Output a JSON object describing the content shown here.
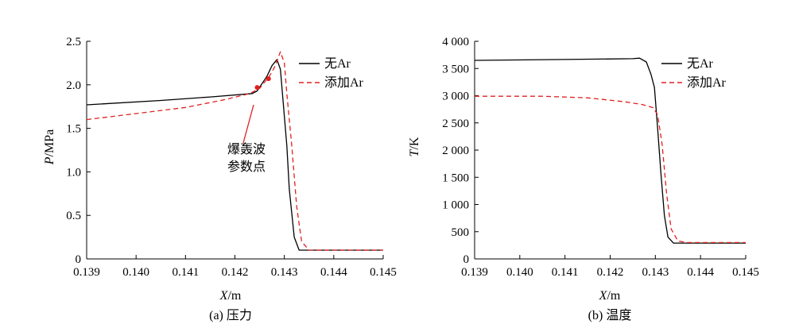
{
  "chart_data": [
    {
      "type": "line",
      "caption": "(a) 压力",
      "xlabel_var": "X",
      "xlabel_unit": "/m",
      "ylabel_var": "P",
      "ylabel_unit": "/MPa",
      "xlim": [
        0.139,
        0.145
      ],
      "ylim": [
        0,
        2.5
      ],
      "xticks": [
        0.139,
        0.14,
        0.141,
        0.142,
        0.143,
        0.144,
        0.145
      ],
      "xtick_labels": [
        "0.139",
        "0.140",
        "0.141",
        "0.142",
        "0.143",
        "0.144",
        "0.145"
      ],
      "yticks": [
        0,
        0.5,
        1.0,
        1.5,
        2.0,
        2.5
      ],
      "ytick_labels": [
        "0",
        "0.5",
        "1.0",
        "1.5",
        "2.0",
        "2.5"
      ],
      "legend_position": "top-right",
      "series": [
        {
          "name": "无Ar",
          "color": "#000000",
          "dash": "solid",
          "points": [
            [
              0.139,
              1.77
            ],
            [
              0.1405,
              1.82
            ],
            [
              0.1415,
              1.86
            ],
            [
              0.14235,
              1.9
            ],
            [
              0.14245,
              1.93
            ],
            [
              0.14265,
              2.1
            ],
            [
              0.14275,
              2.22
            ],
            [
              0.14285,
              2.29
            ],
            [
              0.14292,
              2.18
            ],
            [
              0.14305,
              1.3
            ],
            [
              0.1431,
              0.8
            ],
            [
              0.1432,
              0.25
            ],
            [
              0.1433,
              0.1
            ],
            [
              0.1435,
              0.1
            ],
            [
              0.145,
              0.1
            ]
          ]
        },
        {
          "name": "添加Ar",
          "color": "#e02020",
          "dash": "dashed",
          "points": [
            [
              0.139,
              1.6
            ],
            [
              0.14,
              1.67
            ],
            [
              0.141,
              1.74
            ],
            [
              0.1418,
              1.83
            ],
            [
              0.1423,
              1.9
            ],
            [
              0.1425,
              1.96
            ],
            [
              0.1427,
              2.1
            ],
            [
              0.1428,
              2.2
            ],
            [
              0.14292,
              2.38
            ],
            [
              0.143,
              2.25
            ],
            [
              0.14305,
              1.9
            ],
            [
              0.14315,
              1.3
            ],
            [
              0.14325,
              0.6
            ],
            [
              0.14335,
              0.2
            ],
            [
              0.1435,
              0.1
            ],
            [
              0.145,
              0.1
            ]
          ]
        }
      ],
      "markers": [
        [
          0.14245,
          1.97
        ],
        [
          0.14268,
          2.07
        ]
      ],
      "marker_color": "#e02020",
      "annotation": {
        "lines": [
          "爆轰波",
          "参数点"
        ],
        "anchor": [
          0.14245,
          1.97
        ]
      }
    },
    {
      "type": "line",
      "caption": "(b) 温度",
      "xlabel_var": "X",
      "xlabel_unit": "/m",
      "ylabel_var": "T",
      "ylabel_unit": "/K",
      "xlim": [
        0.139,
        0.145
      ],
      "ylim": [
        0,
        4000
      ],
      "xticks": [
        0.139,
        0.14,
        0.141,
        0.142,
        0.143,
        0.144,
        0.145
      ],
      "xtick_labels": [
        "0.139",
        "0.140",
        "0.141",
        "0.142",
        "0.143",
        "0.144",
        "0.145"
      ],
      "yticks": [
        0,
        500,
        1000,
        1500,
        2000,
        2500,
        3000,
        3500,
        4000
      ],
      "ytick_labels": [
        "0",
        "500",
        "1 000",
        "1 500",
        "2 000",
        "2 500",
        "3 000",
        "3 500",
        "4 000"
      ],
      "legend_position": "top-right",
      "series": [
        {
          "name": "无Ar",
          "color": "#000000",
          "dash": "solid",
          "points": [
            [
              0.139,
              3650
            ],
            [
              0.141,
              3665
            ],
            [
              0.1425,
              3680
            ],
            [
              0.14265,
              3690
            ],
            [
              0.1428,
              3620
            ],
            [
              0.1429,
              3400
            ],
            [
              0.14298,
              3150
            ],
            [
              0.14305,
              2400
            ],
            [
              0.14312,
              1600
            ],
            [
              0.1432,
              800
            ],
            [
              0.14328,
              400
            ],
            [
              0.1434,
              290
            ],
            [
              0.145,
              290
            ]
          ]
        },
        {
          "name": "添加Ar",
          "color": "#e02020",
          "dash": "dashed",
          "points": [
            [
              0.139,
              2990
            ],
            [
              0.1405,
              2990
            ],
            [
              0.1415,
              2960
            ],
            [
              0.1423,
              2890
            ],
            [
              0.1427,
              2840
            ],
            [
              0.14295,
              2780
            ],
            [
              0.14305,
              2650
            ],
            [
              0.14315,
              2100
            ],
            [
              0.14325,
              1200
            ],
            [
              0.14335,
              550
            ],
            [
              0.1435,
              330
            ],
            [
              0.1437,
              300
            ],
            [
              0.145,
              300
            ]
          ]
        }
      ]
    }
  ]
}
